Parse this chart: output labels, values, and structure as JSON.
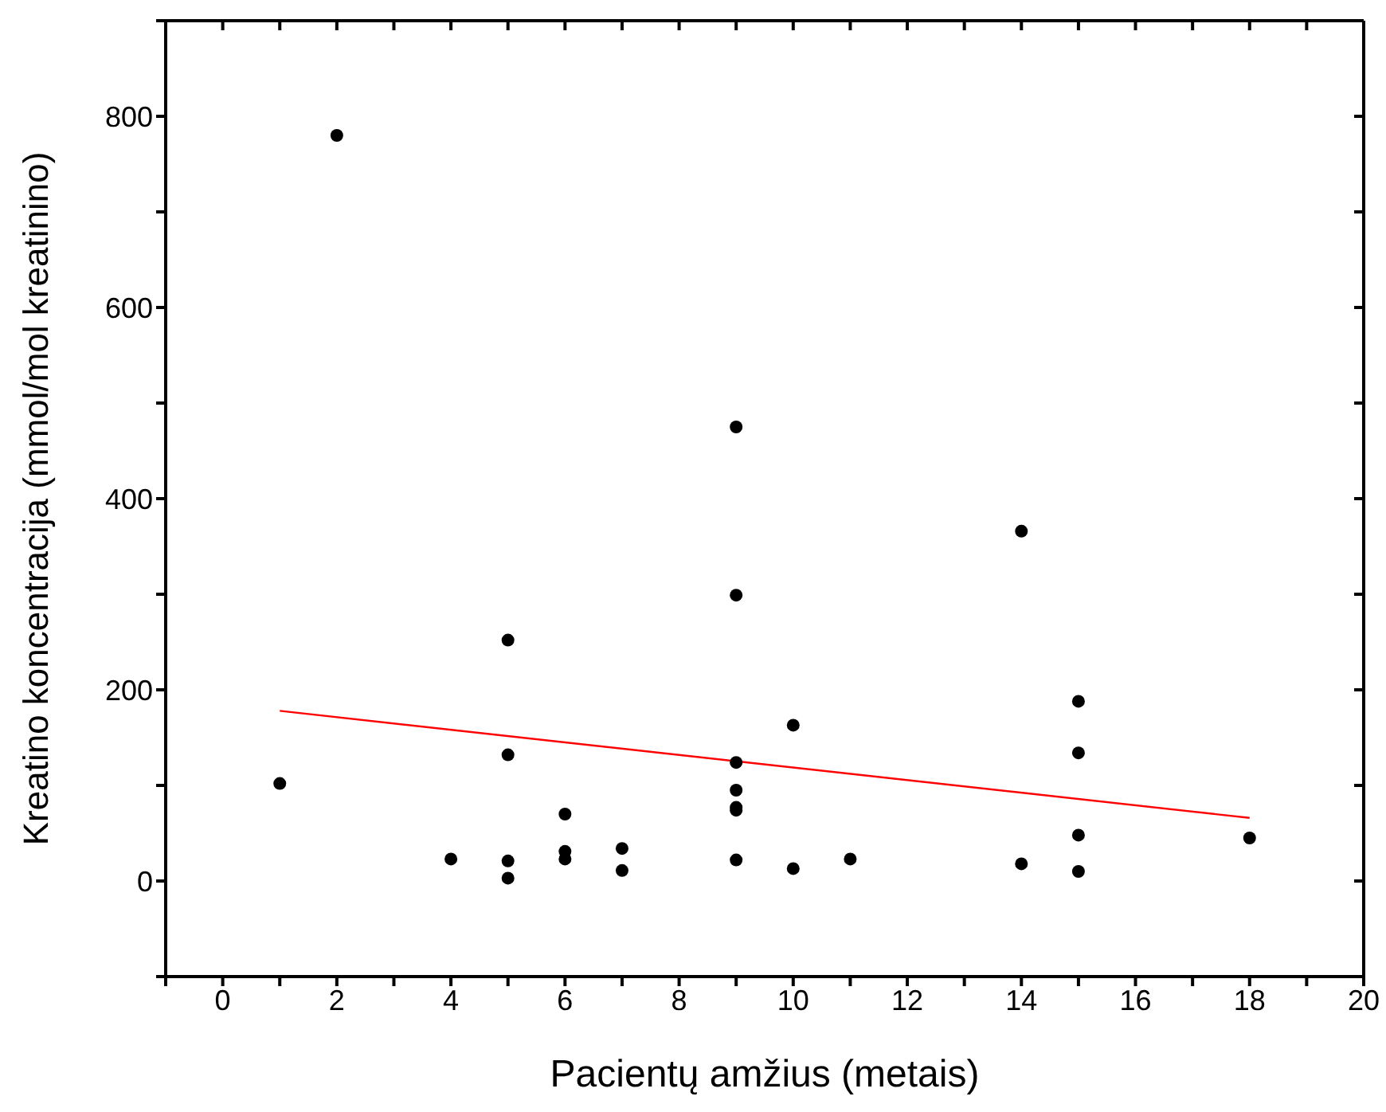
{
  "chart_data": {
    "type": "scatter",
    "xlabel": "Pacientų amžius (metais)",
    "ylabel": "Kreatino koncentracija (mmol/mol kreatinino)",
    "xlim": [
      -1,
      20
    ],
    "ylim": [
      -100,
      900
    ],
    "xticks": [
      {
        "value": -1,
        "label": null
      },
      0,
      {
        "value": 1,
        "label": null
      },
      2,
      {
        "value": 3,
        "label": null
      },
      4,
      {
        "value": 5,
        "label": null
      },
      6,
      {
        "value": 7,
        "label": null
      },
      8,
      {
        "value": 9,
        "label": null
      },
      10,
      {
        "value": 11,
        "label": null
      },
      12,
      {
        "value": 13,
        "label": null
      },
      14,
      {
        "value": 15,
        "label": null
      },
      16,
      {
        "value": 17,
        "label": null
      },
      18,
      {
        "value": 19,
        "label": null
      },
      20
    ],
    "yticks": [
      {
        "value": -100,
        "label": null
      },
      0,
      {
        "value": 100,
        "label": null
      },
      200,
      {
        "value": 300,
        "label": null
      },
      400,
      {
        "value": 500,
        "label": null
      },
      600,
      {
        "value": 700,
        "label": null
      },
      800,
      {
        "value": 900,
        "label": null
      }
    ],
    "grid": false,
    "legend": false,
    "marker": "circle",
    "series": [
      {
        "color": "#000000",
        "x": [
          1,
          2,
          4,
          5,
          5,
          5,
          5,
          6,
          6,
          6,
          7,
          7,
          9,
          9,
          9,
          9,
          9,
          9,
          9,
          10,
          10,
          11,
          14,
          14,
          15,
          15,
          15,
          15,
          18
        ],
        "values": [
          102,
          780,
          23,
          252,
          132,
          21,
          3,
          70,
          31,
          23,
          34,
          11,
          475,
          299,
          124,
          95,
          77,
          74,
          22,
          163,
          13,
          23,
          366,
          18,
          188,
          134,
          48,
          10,
          45
        ]
      },
      {
        "type": "line",
        "color": "#ff0000",
        "x": [
          1,
          18
        ],
        "values": [
          178,
          66
        ],
        "line_style": "solid",
        "marker": "none"
      }
    ]
  }
}
